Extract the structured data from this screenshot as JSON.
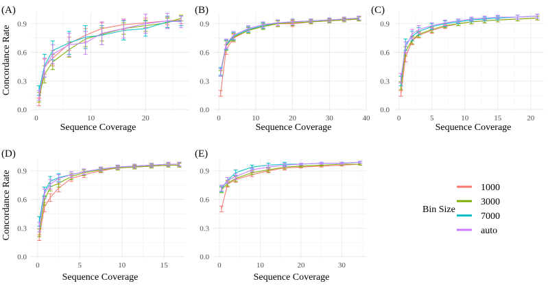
{
  "figure": {
    "ylabel": "Concordance Rate",
    "xlabel": "Sequence Coverage",
    "legend_title": "Bin Size",
    "legend_position": "right",
    "grid": true
  },
  "series_styles": [
    {
      "name": "1000",
      "color": "#F8766D"
    },
    {
      "name": "3000",
      "color": "#7CAE00"
    },
    {
      "name": "7000",
      "color": "#00BFC4"
    },
    {
      "name": "auto",
      "color": "#C77CFF"
    }
  ],
  "chart_data": [
    {
      "type": "line",
      "title": "(A)",
      "xlabel": "Sequence Coverage",
      "ylabel": "Concordance Rate",
      "xlim": [
        -1,
        28
      ],
      "ylim": [
        -0.02,
        1.02
      ],
      "xticks": [
        0,
        10,
        20
      ],
      "yticks": [
        0.0,
        0.3,
        0.6,
        0.9
      ],
      "series": [
        {
          "name": "1000",
          "x": [
            0.5,
            1.5,
            3,
            6,
            9,
            12,
            16,
            20,
            24,
            26.5
          ],
          "y": [
            0.08,
            0.45,
            0.54,
            0.69,
            0.78,
            0.85,
            0.89,
            0.91,
            0.93,
            0.94
          ],
          "err": [
            0.04,
            0.08,
            0.08,
            0.07,
            0.07,
            0.06,
            0.05,
            0.05,
            0.04,
            0.04
          ]
        },
        {
          "name": "3000",
          "x": [
            0.5,
            1.5,
            3,
            6,
            9,
            12,
            16,
            20,
            24,
            26.5
          ],
          "y": [
            0.13,
            0.37,
            0.5,
            0.63,
            0.74,
            0.79,
            0.85,
            0.88,
            0.91,
            0.96
          ],
          "err": [
            0.05,
            0.09,
            0.08,
            0.08,
            0.08,
            0.07,
            0.06,
            0.06,
            0.05,
            0.03
          ]
        },
        {
          "name": "7000",
          "x": [
            0.5,
            1.5,
            3,
            6,
            9,
            12,
            16,
            20,
            24,
            26.5
          ],
          "y": [
            0.2,
            0.46,
            0.62,
            0.7,
            0.76,
            0.78,
            0.83,
            0.85,
            0.92,
            0.93
          ],
          "err": [
            0.05,
            0.12,
            0.1,
            0.12,
            0.12,
            0.1,
            0.1,
            0.08,
            0.06,
            0.05
          ]
        },
        {
          "name": "auto",
          "x": [
            0.5,
            1.5,
            3,
            6,
            9,
            12,
            16,
            20,
            24,
            26.5
          ],
          "y": [
            0.15,
            0.44,
            0.58,
            0.68,
            0.7,
            0.8,
            0.85,
            0.9,
            0.93,
            0.92
          ],
          "err": [
            0.05,
            0.1,
            0.1,
            0.12,
            0.12,
            0.12,
            0.1,
            0.1,
            0.08,
            0.06
          ]
        }
      ]
    },
    {
      "type": "line",
      "title": "(B)",
      "xlabel": "Sequence Coverage",
      "ylabel": "",
      "xlim": [
        -1.5,
        40
      ],
      "ylim": [
        -0.02,
        1.02
      ],
      "xticks": [
        0,
        10,
        20,
        30,
        40
      ],
      "yticks": [
        0.0,
        0.3,
        0.6,
        0.9
      ],
      "series": [
        {
          "name": "1000",
          "x": [
            0.5,
            2,
            4,
            8,
            12,
            16,
            20,
            25,
            30,
            34,
            38
          ],
          "y": [
            0.17,
            0.63,
            0.75,
            0.83,
            0.88,
            0.9,
            0.9,
            0.92,
            0.93,
            0.94,
            0.95
          ],
          "err": [
            0.03,
            0.05,
            0.04,
            0.03,
            0.03,
            0.03,
            0.03,
            0.02,
            0.02,
            0.02,
            0.02
          ]
        },
        {
          "name": "3000",
          "x": [
            0.5,
            2,
            4,
            8,
            12,
            16,
            20,
            25,
            30,
            34,
            38
          ],
          "y": [
            0.38,
            0.67,
            0.76,
            0.83,
            0.87,
            0.9,
            0.91,
            0.92,
            0.93,
            0.94,
            0.95
          ],
          "err": [
            0.03,
            0.05,
            0.04,
            0.03,
            0.03,
            0.03,
            0.03,
            0.02,
            0.02,
            0.02,
            0.02
          ]
        },
        {
          "name": "7000",
          "x": [
            0.5,
            2,
            4,
            8,
            12,
            16,
            20,
            25,
            30,
            34,
            38
          ],
          "y": [
            0.4,
            0.68,
            0.77,
            0.84,
            0.88,
            0.91,
            0.92,
            0.93,
            0.94,
            0.95,
            0.96
          ],
          "err": [
            0.04,
            0.05,
            0.04,
            0.03,
            0.03,
            0.03,
            0.03,
            0.02,
            0.02,
            0.02,
            0.02
          ]
        },
        {
          "name": "auto",
          "x": [
            0.5,
            2,
            4,
            8,
            12,
            16,
            20,
            25,
            30,
            34,
            38
          ],
          "y": [
            0.39,
            0.69,
            0.78,
            0.85,
            0.89,
            0.91,
            0.92,
            0.93,
            0.94,
            0.95,
            0.96
          ],
          "err": [
            0.04,
            0.05,
            0.04,
            0.03,
            0.03,
            0.03,
            0.03,
            0.02,
            0.02,
            0.02,
            0.02
          ]
        }
      ]
    },
    {
      "type": "line",
      "title": "(C)",
      "xlabel": "Sequence Coverage",
      "ylabel": "",
      "xlim": [
        -0.8,
        22
      ],
      "ylim": [
        -0.02,
        1.02
      ],
      "xticks": [
        0,
        5,
        10,
        15,
        20
      ],
      "yticks": [
        0.0,
        0.3,
        0.6,
        0.9
      ],
      "series": [
        {
          "name": "1000",
          "x": [
            0.3,
            1,
            2,
            3,
            5,
            7,
            9,
            11,
            13,
            15,
            18,
            21
          ],
          "y": [
            0.17,
            0.55,
            0.72,
            0.78,
            0.83,
            0.87,
            0.9,
            0.92,
            0.93,
            0.94,
            0.95,
            0.96
          ],
          "err": [
            0.03,
            0.05,
            0.04,
            0.03,
            0.03,
            0.02,
            0.02,
            0.02,
            0.02,
            0.02,
            0.02,
            0.02
          ]
        },
        {
          "name": "3000",
          "x": [
            0.3,
            1,
            2,
            3,
            5,
            7,
            9,
            11,
            13,
            15,
            18,
            21
          ],
          "y": [
            0.25,
            0.61,
            0.73,
            0.79,
            0.84,
            0.88,
            0.9,
            0.92,
            0.93,
            0.94,
            0.95,
            0.96
          ],
          "err": [
            0.04,
            0.05,
            0.04,
            0.03,
            0.03,
            0.02,
            0.02,
            0.02,
            0.02,
            0.02,
            0.02,
            0.02
          ]
        },
        {
          "name": "7000",
          "x": [
            0.3,
            1,
            2,
            3,
            5,
            7,
            9,
            11,
            13,
            15,
            18,
            21
          ],
          "y": [
            0.3,
            0.68,
            0.77,
            0.82,
            0.87,
            0.9,
            0.92,
            0.94,
            0.95,
            0.96,
            0.97,
            0.98
          ],
          "err": [
            0.05,
            0.06,
            0.05,
            0.04,
            0.03,
            0.03,
            0.02,
            0.02,
            0.02,
            0.02,
            0.02,
            0.02
          ]
        },
        {
          "name": "auto",
          "x": [
            0.3,
            1,
            2,
            3,
            5,
            7,
            9,
            11,
            13,
            15,
            18,
            21
          ],
          "y": [
            0.33,
            0.65,
            0.79,
            0.84,
            0.88,
            0.91,
            0.93,
            0.95,
            0.96,
            0.97,
            0.97,
            0.98
          ],
          "err": [
            0.05,
            0.06,
            0.05,
            0.04,
            0.03,
            0.03,
            0.02,
            0.02,
            0.02,
            0.02,
            0.02,
            0.02
          ]
        }
      ]
    },
    {
      "type": "line",
      "title": "(D)",
      "xlabel": "Sequence Coverage",
      "ylabel": "Concordance Rate",
      "xlim": [
        -0.8,
        17.5
      ],
      "ylim": [
        -0.02,
        1.02
      ],
      "xticks": [
        0,
        5,
        10,
        15
      ],
      "yticks": [
        0.0,
        0.3,
        0.6,
        0.9
      ],
      "series": [
        {
          "name": "1000",
          "x": [
            0.2,
            0.8,
            1.5,
            2.5,
            4,
            5.5,
            7.5,
            9.5,
            11.5,
            13.5,
            15.5,
            16.8
          ],
          "y": [
            0.2,
            0.52,
            0.62,
            0.72,
            0.82,
            0.86,
            0.9,
            0.93,
            0.94,
            0.95,
            0.96,
            0.96
          ],
          "err": [
            0.03,
            0.05,
            0.04,
            0.04,
            0.03,
            0.03,
            0.02,
            0.02,
            0.02,
            0.02,
            0.02,
            0.02
          ]
        },
        {
          "name": "3000",
          "x": [
            0.2,
            0.8,
            1.5,
            2.5,
            4,
            5.5,
            7.5,
            9.5,
            11.5,
            13.5,
            15.5,
            16.8
          ],
          "y": [
            0.25,
            0.59,
            0.73,
            0.77,
            0.84,
            0.88,
            0.91,
            0.93,
            0.94,
            0.95,
            0.96,
            0.96
          ],
          "err": [
            0.04,
            0.05,
            0.04,
            0.04,
            0.03,
            0.03,
            0.02,
            0.02,
            0.02,
            0.02,
            0.02,
            0.02
          ]
        },
        {
          "name": "7000",
          "x": [
            0.2,
            0.8,
            1.5,
            2.5,
            4,
            5.5,
            7.5,
            9.5,
            11.5,
            13.5,
            15.5,
            16.8
          ],
          "y": [
            0.37,
            0.68,
            0.79,
            0.83,
            0.86,
            0.89,
            0.92,
            0.94,
            0.95,
            0.96,
            0.97,
            0.97
          ],
          "err": [
            0.05,
            0.05,
            0.05,
            0.04,
            0.03,
            0.03,
            0.02,
            0.02,
            0.02,
            0.02,
            0.02,
            0.02
          ]
        },
        {
          "name": "auto",
          "x": [
            0.2,
            0.8,
            1.5,
            2.5,
            4,
            5.5,
            7.5,
            9.5,
            11.5,
            13.5,
            15.5,
            16.8
          ],
          "y": [
            0.31,
            0.66,
            0.76,
            0.82,
            0.86,
            0.89,
            0.92,
            0.94,
            0.95,
            0.96,
            0.97,
            0.97
          ],
          "err": [
            0.05,
            0.05,
            0.05,
            0.04,
            0.03,
            0.03,
            0.02,
            0.02,
            0.02,
            0.02,
            0.02,
            0.02
          ]
        }
      ]
    },
    {
      "type": "line",
      "title": "(E)",
      "xlabel": "Sequence Coverage",
      "ylabel": "",
      "xlim": [
        -1.5,
        36
      ],
      "ylim": [
        -0.02,
        1.02
      ],
      "xticks": [
        0,
        10,
        20,
        30
      ],
      "yticks": [
        0.0,
        0.3,
        0.6,
        0.9
      ],
      "series": [
        {
          "name": "1000",
          "x": [
            0.5,
            2,
            4,
            8,
            12,
            16,
            20,
            25,
            30,
            34.5
          ],
          "y": [
            0.5,
            0.76,
            0.81,
            0.86,
            0.9,
            0.93,
            0.94,
            0.95,
            0.96,
            0.97
          ],
          "err": [
            0.03,
            0.03,
            0.03,
            0.02,
            0.02,
            0.02,
            0.01,
            0.01,
            0.01,
            0.01
          ]
        },
        {
          "name": "3000",
          "x": [
            0.5,
            2,
            4,
            8,
            12,
            16,
            20,
            25,
            30,
            34.5
          ],
          "y": [
            0.7,
            0.77,
            0.82,
            0.88,
            0.91,
            0.94,
            0.95,
            0.96,
            0.97,
            0.97
          ],
          "err": [
            0.03,
            0.03,
            0.03,
            0.02,
            0.02,
            0.02,
            0.01,
            0.01,
            0.01,
            0.01
          ]
        },
        {
          "name": "7000",
          "x": [
            0.5,
            2,
            4,
            8,
            12,
            16,
            20,
            25,
            30,
            34.5
          ],
          "y": [
            0.71,
            0.8,
            0.88,
            0.94,
            0.96,
            0.97,
            0.97,
            0.98,
            0.98,
            0.99
          ],
          "err": [
            0.03,
            0.03,
            0.03,
            0.02,
            0.02,
            0.02,
            0.01,
            0.01,
            0.01,
            0.01
          ]
        },
        {
          "name": "auto",
          "x": [
            0.5,
            2,
            4,
            8,
            12,
            16,
            20,
            25,
            30,
            34.5
          ],
          "y": [
            0.72,
            0.8,
            0.84,
            0.91,
            0.94,
            0.96,
            0.97,
            0.98,
            0.98,
            0.99
          ],
          "err": [
            0.03,
            0.03,
            0.03,
            0.02,
            0.02,
            0.02,
            0.01,
            0.01,
            0.01,
            0.01
          ]
        }
      ]
    }
  ]
}
